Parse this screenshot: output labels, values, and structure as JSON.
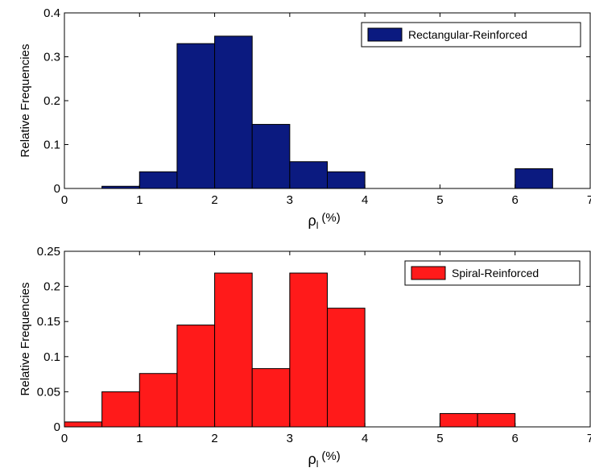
{
  "chart_data": [
    {
      "type": "bar",
      "bin_edges": [
        0,
        0.5,
        1,
        1.5,
        2,
        2.5,
        3,
        3.5,
        4,
        4.5,
        5,
        5.5,
        6,
        6.5,
        7
      ],
      "values": [
        0,
        0.005,
        0.038,
        0.33,
        0.347,
        0.146,
        0.061,
        0.038,
        0,
        0,
        0,
        0,
        0.045,
        0
      ],
      "series": [
        {
          "name": "Rectangular-Reinforced",
          "color": "#0b1a80"
        }
      ],
      "xlabel": {
        "symbol": "ρ",
        "subscript": "l",
        "unit": "(%)"
      },
      "ylabel": "Relative Frequencies",
      "xlim": [
        0,
        7
      ],
      "ylim": [
        0,
        0.4
      ],
      "xticks": [
        "0",
        "1",
        "2",
        "3",
        "4",
        "5",
        "6",
        "7"
      ],
      "yticks": [
        "0",
        "0.1",
        "0.2",
        "0.3",
        "0.4"
      ],
      "legend": "top-right",
      "grid": false
    },
    {
      "type": "bar",
      "bin_edges": [
        0,
        0.5,
        1,
        1.5,
        2,
        2.5,
        3,
        3.5,
        4,
        4.5,
        5,
        5.5,
        6,
        6.5,
        7
      ],
      "values": [
        0.007,
        0.05,
        0.076,
        0.145,
        0.219,
        0.083,
        0.219,
        0.169,
        0,
        0,
        0.019,
        0.019,
        0,
        0
      ],
      "series": [
        {
          "name": "Spiral-Reinforced",
          "color": "#ff1a1a"
        }
      ],
      "xlabel": {
        "symbol": "ρ",
        "subscript": "l",
        "unit": "(%)"
      },
      "ylabel": "Relative Frequencies",
      "xlim": [
        0,
        7
      ],
      "ylim": [
        0,
        0.25
      ],
      "xticks": [
        "0",
        "1",
        "2",
        "3",
        "4",
        "5",
        "6",
        "7"
      ],
      "yticks": [
        "0",
        "0.05",
        "0.1",
        "0.15",
        "0.2",
        "0.25"
      ],
      "legend": "top-right",
      "grid": false
    }
  ]
}
